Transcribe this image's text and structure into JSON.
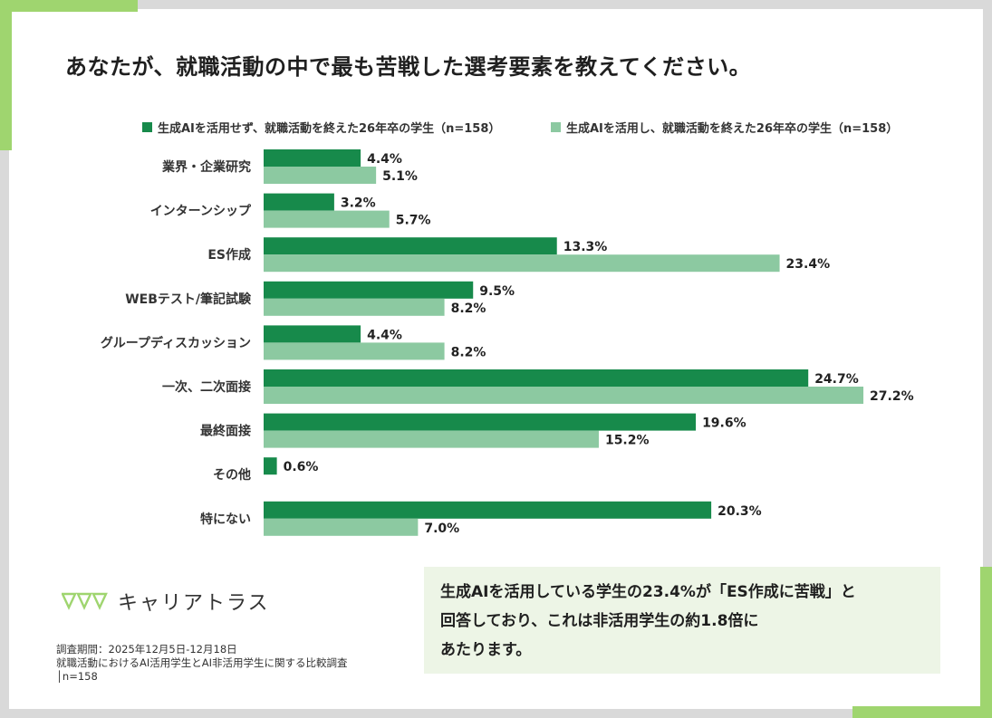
{
  "title": "あなたが、就職活動の中で最も苦戦した選考要素を教えてください。",
  "colors": {
    "series1": "#178a4b",
    "series2": "#8cc9a1",
    "accent": "#9fd56f"
  },
  "chart_data": {
    "type": "bar",
    "orientation": "horizontal",
    "categories": [
      "業界・企業研究",
      "インターンシップ",
      "ES作成",
      "WEBテスト/筆記試験",
      "グループディスカッション",
      "一次、二次面接",
      "最終面接",
      "その他",
      "特にない"
    ],
    "series": [
      {
        "name": "生成AIを活用せず、就職活動を終えた26年卒の学生（n=158）",
        "values": [
          4.4,
          3.2,
          13.3,
          9.5,
          4.4,
          24.7,
          19.6,
          0.6,
          20.3
        ],
        "labels": [
          "4.4%",
          "3.2%",
          "13.3%",
          "9.5%",
          "4.4%",
          "24.7%",
          "19.6%",
          "0.6%",
          "20.3%"
        ]
      },
      {
        "name": "生成AIを活用し、就職活動を終えた26年卒の学生（n=158）",
        "values": [
          5.1,
          5.7,
          23.4,
          8.2,
          8.2,
          27.2,
          15.2,
          null,
          7.0
        ],
        "labels": [
          "5.1%",
          "5.7%",
          "23.4%",
          "8.2%",
          "8.2%",
          "27.2%",
          "15.2%",
          "",
          "7.0%"
        ]
      }
    ],
    "legend_position": "top",
    "grid": false
  },
  "logo": {
    "text": "キャリアトラス"
  },
  "footnote": {
    "line1": "調査期間：2025年12月5日-12月18日",
    "line2": "就職活動におけるAI活用学生とAI非活用学生に関する比較調査",
    "line3": "│n=158"
  },
  "callout": {
    "line1": "生成AIを活用している学生の23.4%が「ES作成に苦戦」と",
    "line2": "回答しており、これは非活用学生の約1.8倍に",
    "line3": "あたります。"
  }
}
